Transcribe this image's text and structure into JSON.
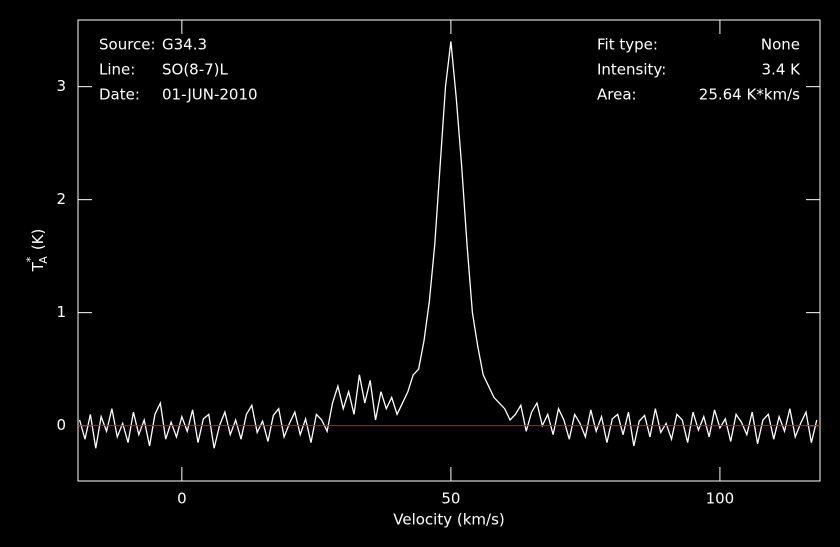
{
  "chart_data": {
    "type": "line",
    "xlabel": "Velocity (km/s)",
    "ylabel": {
      "symbol": "T",
      "sup": "*",
      "sub": "A",
      "unit": "(K)"
    },
    "annotations_left": [
      {
        "label": "Source:",
        "value": "G34.3"
      },
      {
        "label": "Line:",
        "value": "SO(8-7)L"
      },
      {
        "label": "Date:",
        "value": "01-JUN-2010"
      }
    ],
    "annotations_right": [
      {
        "label": "Fit type:",
        "value": "None"
      },
      {
        "label": "Intensity:",
        "value": "3.4 K"
      },
      {
        "label": "Area:",
        "value": "25.64 K*km/s"
      }
    ],
    "xlim": [
      -19.3,
      118.6
    ],
    "ylim": [
      -0.49,
      3.59
    ],
    "xticks": [
      0,
      50,
      100
    ],
    "yticks": [
      0,
      1,
      2,
      3
    ],
    "baseline": {
      "value": 0,
      "color": "#ff0000"
    },
    "x": [
      -19,
      -18,
      -17,
      -16,
      -15,
      -14,
      -13,
      -12,
      -11,
      -10,
      -9,
      -8,
      -7,
      -6,
      -5,
      -4,
      -3,
      -2,
      -1,
      0,
      1,
      2,
      3,
      4,
      5,
      6,
      7,
      8,
      9,
      10,
      11,
      12,
      13,
      14,
      15,
      16,
      17,
      18,
      19,
      20,
      21,
      22,
      23,
      24,
      25,
      26,
      27,
      28,
      29,
      30,
      31,
      32,
      33,
      34,
      35,
      36,
      37,
      38,
      39,
      40,
      41,
      42,
      43,
      44,
      45,
      46,
      47,
      48,
      49,
      50,
      51,
      52,
      53,
      54,
      55,
      56,
      57,
      58,
      59,
      60,
      61,
      62,
      63,
      64,
      65,
      66,
      67,
      68,
      69,
      70,
      71,
      72,
      73,
      74,
      75,
      76,
      77,
      78,
      79,
      80,
      81,
      82,
      83,
      84,
      85,
      86,
      87,
      88,
      89,
      90,
      91,
      92,
      93,
      94,
      95,
      96,
      97,
      98,
      99,
      100,
      101,
      102,
      103,
      104,
      105,
      106,
      107,
      108,
      109,
      110,
      111,
      112,
      113,
      114,
      115,
      116,
      117,
      118
    ],
    "series": [
      {
        "color": "#ffffff",
        "values": [
          0.05,
          -0.12,
          0.1,
          -0.2,
          0.08,
          -0.05,
          0.15,
          -0.1,
          0.02,
          -0.15,
          0.12,
          -0.08,
          0.05,
          -0.18,
          0.1,
          0.2,
          -0.12,
          0.03,
          -0.1,
          0.08,
          -0.05,
          0.14,
          -0.15,
          0.06,
          0.1,
          -0.2,
          0.0,
          0.12,
          -0.08,
          0.05,
          -0.12,
          0.1,
          0.18,
          -0.06,
          0.04,
          -0.14,
          0.09,
          0.15,
          -0.1,
          0.02,
          0.12,
          -0.08,
          0.06,
          -0.15,
          0.1,
          0.05,
          -0.05,
          0.2,
          0.35,
          0.15,
          0.3,
          0.1,
          0.45,
          0.2,
          0.4,
          0.05,
          0.3,
          0.15,
          0.25,
          0.1,
          0.2,
          0.3,
          0.45,
          0.5,
          0.75,
          1.1,
          1.6,
          2.3,
          3.0,
          3.4,
          2.9,
          2.3,
          1.6,
          1.0,
          0.7,
          0.45,
          0.35,
          0.25,
          0.2,
          0.15,
          0.05,
          0.1,
          0.18,
          -0.05,
          0.12,
          0.2,
          0.0,
          0.1,
          -0.08,
          0.15,
          0.05,
          -0.12,
          0.1,
          0.02,
          -0.1,
          0.14,
          -0.05,
          0.08,
          -0.15,
          0.06,
          0.1,
          -0.08,
          0.12,
          -0.18,
          0.04,
          0.09,
          -0.1,
          0.15,
          -0.06,
          0.02,
          -0.12,
          0.1,
          0.05,
          -0.15,
          0.12,
          -0.04,
          0.08,
          -0.1,
          0.14,
          -0.02,
          0.06,
          -0.14,
          0.1,
          0.03,
          -0.08,
          0.12,
          -0.16,
          0.05,
          0.1,
          -0.12,
          0.08,
          -0.05,
          0.15,
          -0.1,
          0.02,
          0.12,
          -0.15,
          0.05
        ]
      }
    ]
  }
}
